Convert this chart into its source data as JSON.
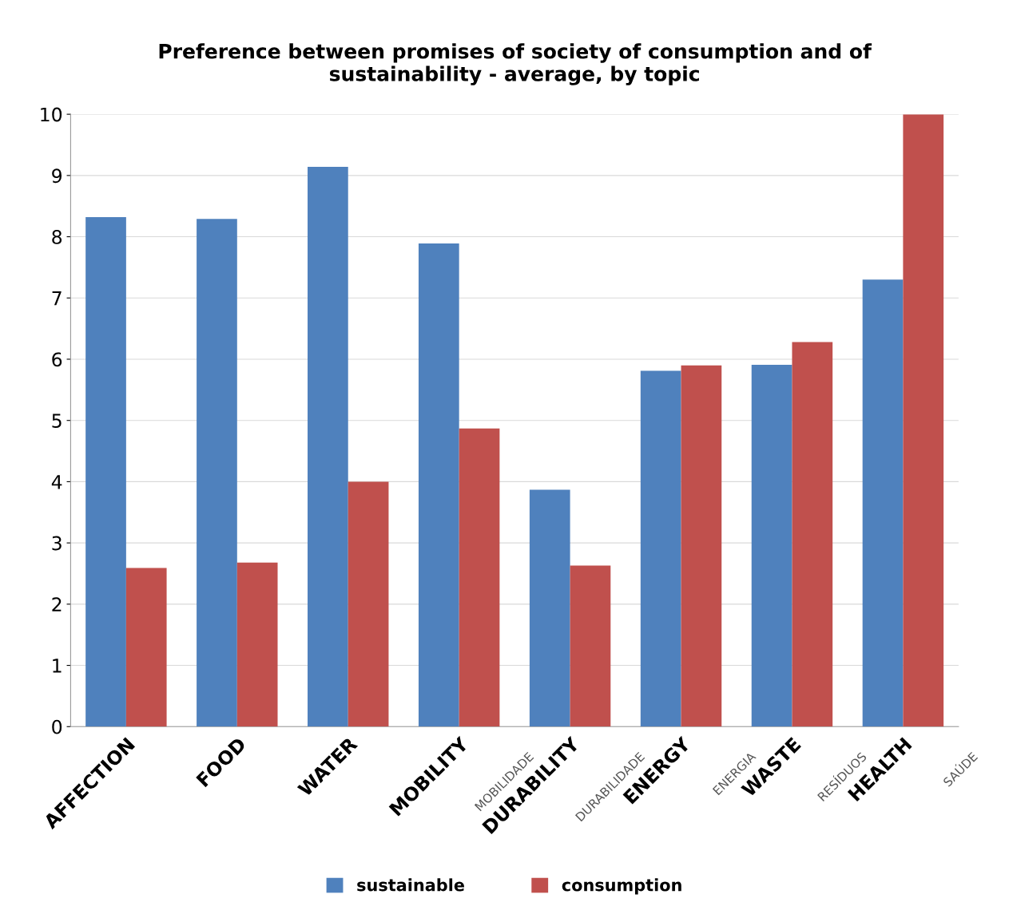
{
  "chart_data": {
    "type": "bar",
    "title": "Preference between promises of society of consumption and of\nsustainability - average, by topic",
    "categories": [
      "AFFECTION",
      "FOOD",
      "WATER",
      "MOBILITY",
      "DURABILITY",
      "ENERGY",
      "WASTE",
      "HEALTH"
    ],
    "series": [
      {
        "name": "sustainable",
        "color": "#4f81bd",
        "values": [
          8.32,
          8.29,
          9.14,
          7.89,
          3.87,
          5.81,
          5.91,
          7.3
        ]
      },
      {
        "name": "consumption",
        "color": "#c0504d",
        "values": [
          2.59,
          2.68,
          4.0,
          4.87,
          2.63,
          5.9,
          6.28,
          10.0
        ]
      }
    ],
    "annotations": [
      "MOBILIDADE",
      "DURABILIDADE",
      "ENERGIA",
      "RESÍDUOS",
      "SAÚDE"
    ],
    "ylim": [
      0,
      10
    ],
    "yticks": [
      0,
      1,
      2,
      3,
      4,
      5,
      6,
      7,
      8,
      9,
      10
    ],
    "grid": "y",
    "legend": "bottom"
  }
}
